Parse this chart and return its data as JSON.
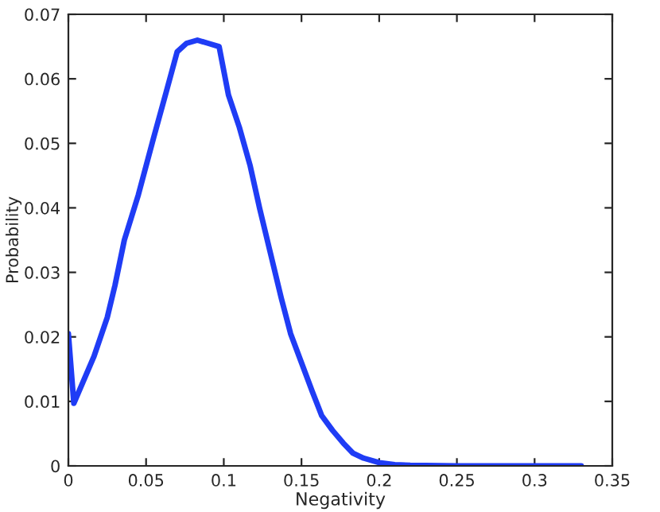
{
  "chart_data": {
    "type": "line",
    "xlabel": "Negativity",
    "ylabel": "Probability",
    "x": [
      0,
      0.0035,
      0.0165,
      0.025,
      0.03,
      0.036,
      0.045,
      0.055,
      0.063,
      0.07,
      0.076,
      0.083,
      0.09,
      0.097,
      0.103,
      0.11,
      0.117,
      0.123,
      0.13,
      0.137,
      0.143,
      0.15,
      0.157,
      0.163,
      0.17,
      0.177,
      0.183,
      0.19,
      0.2,
      0.21,
      0.22,
      0.25,
      0.3,
      0.33
    ],
    "series": [
      {
        "color": "#1f3cf5",
        "values": [
          0.0205,
          0.0097,
          0.017,
          0.023,
          0.028,
          0.035,
          0.042,
          0.051,
          0.058,
          0.0642,
          0.0655,
          0.066,
          0.0655,
          0.065,
          0.0575,
          0.0525,
          0.0465,
          0.04,
          0.033,
          0.026,
          0.0205,
          0.016,
          0.0115,
          0.0078,
          0.0055,
          0.0035,
          0.002,
          0.0012,
          0.0005,
          0.0002,
          0.0001,
          0,
          0,
          0
        ]
      }
    ],
    "xlim": [
      0,
      0.35
    ],
    "xticks": [
      0,
      0.05,
      0.1,
      0.15,
      0.2,
      0.25,
      0.3,
      0.35
    ],
    "ylim": [
      0,
      0.07
    ],
    "yticks": [
      0,
      0.01,
      0.02,
      0.03,
      0.04,
      0.05,
      0.06,
      0.07
    ],
    "grid": false,
    "marker": "none",
    "line_style": "solid"
  }
}
